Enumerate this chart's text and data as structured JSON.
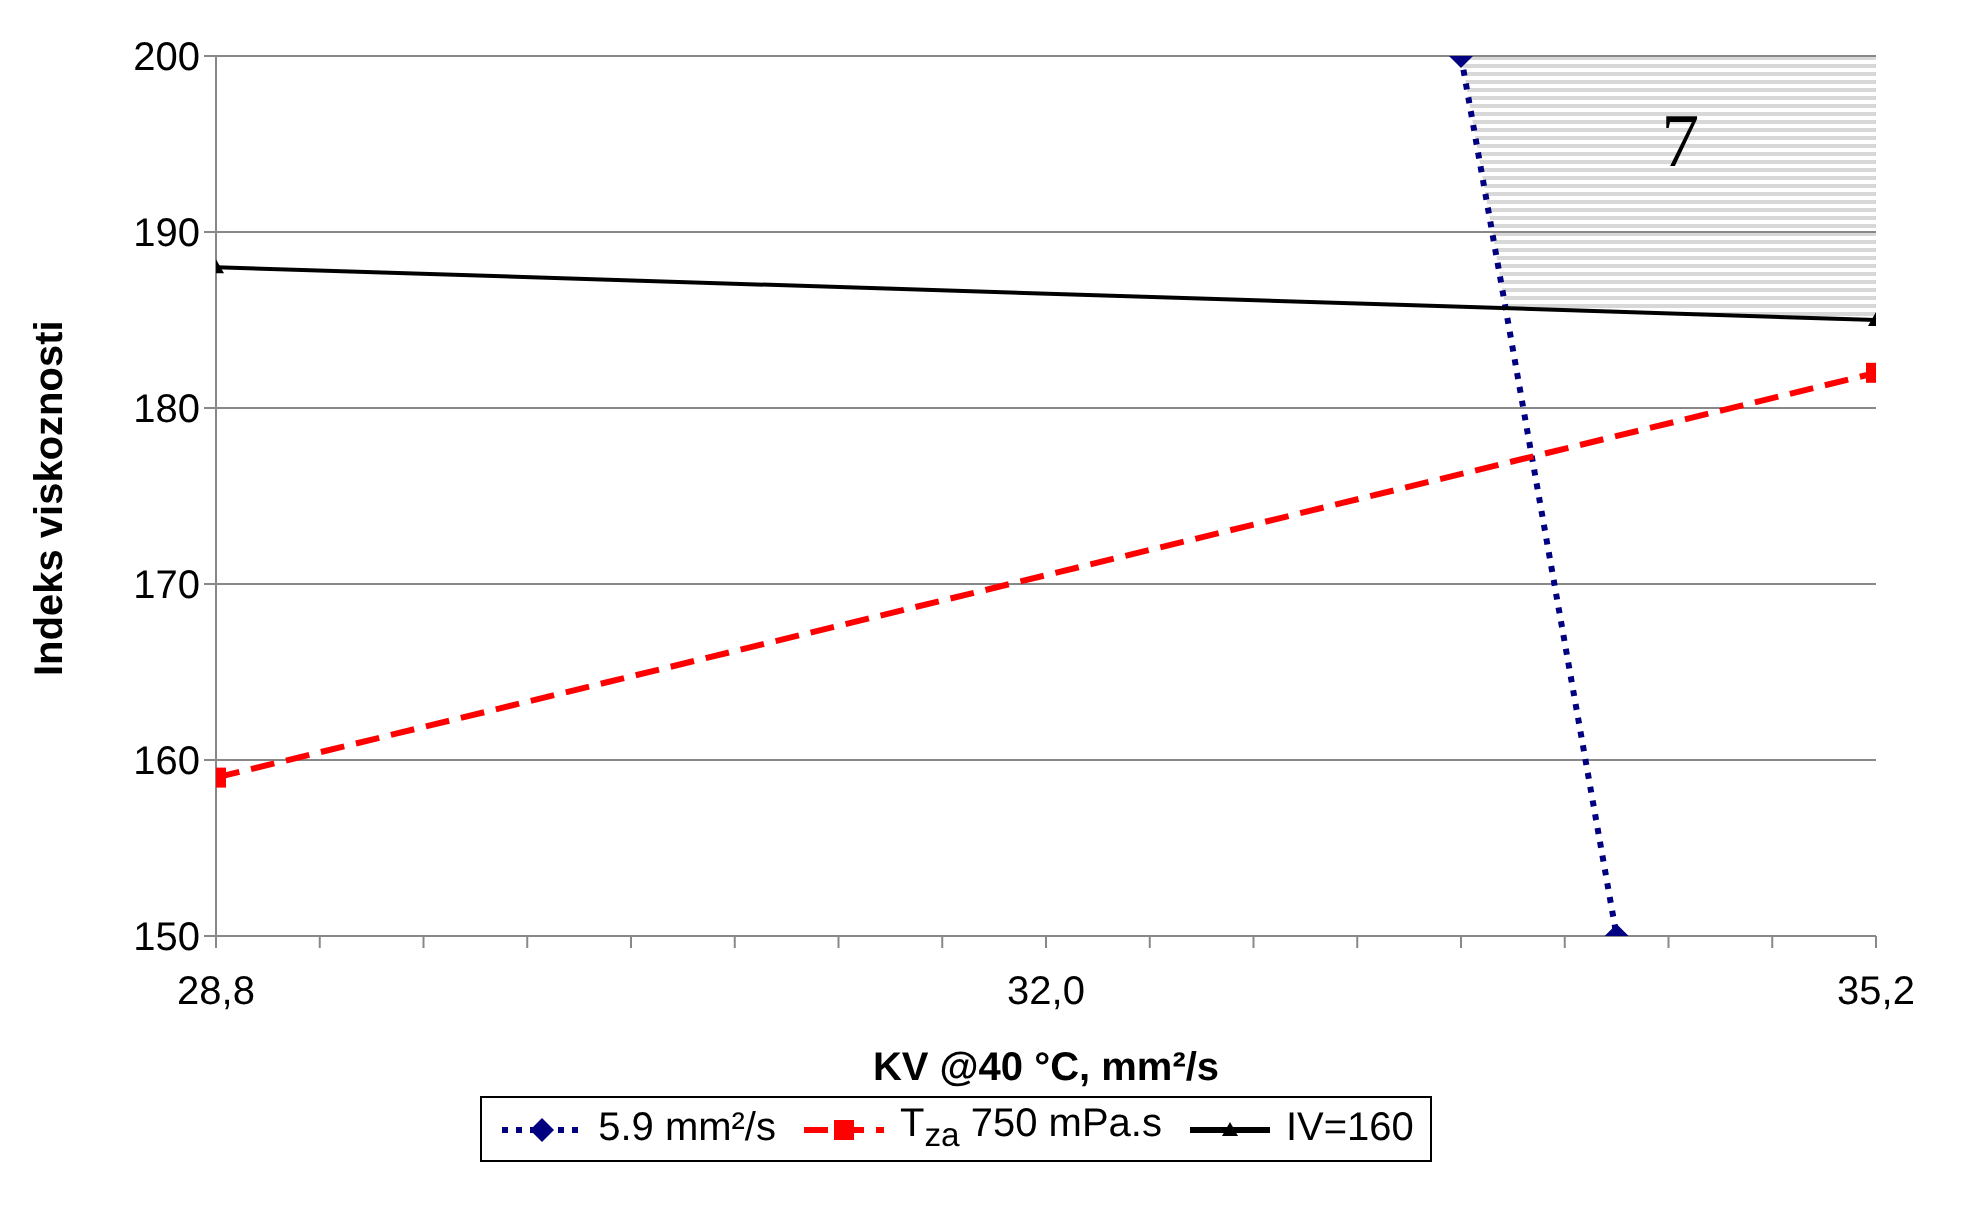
{
  "chart_data": {
    "type": "line",
    "xlabel": "KV @40 °C, mm²/s",
    "ylabel": "Indeks viskoznosti",
    "xlim": [
      28.8,
      35.2
    ],
    "xticks": [
      {
        "value": 28.8,
        "label": "28,8"
      },
      {
        "value": 29.2,
        "label": null
      },
      {
        "value": 29.6,
        "label": null
      },
      {
        "value": 30.0,
        "label": null
      },
      {
        "value": 30.4,
        "label": null
      },
      {
        "value": 30.8,
        "label": null
      },
      {
        "value": 31.2,
        "label": null
      },
      {
        "value": 31.6,
        "label": null
      },
      {
        "value": 32.0,
        "label": "32,0"
      },
      {
        "value": 32.4,
        "label": null
      },
      {
        "value": 32.8,
        "label": null
      },
      {
        "value": 33.2,
        "label": null
      },
      {
        "value": 33.6,
        "label": null
      },
      {
        "value": 34.0,
        "label": null
      },
      {
        "value": 34.4,
        "label": null
      },
      {
        "value": 34.8,
        "label": null
      },
      {
        "value": 35.2,
        "label": "35,2"
      }
    ],
    "ylim": [
      150,
      200
    ],
    "yticks": [
      150,
      160,
      170,
      180,
      190,
      200
    ],
    "grid": "y",
    "legend": "bottom",
    "annotations": [
      "7"
    ],
    "series": [
      {
        "name": "5.9 mm²/s",
        "color": "#000080",
        "x": [
          33.6,
          34.2
        ],
        "values": [
          200,
          150
        ],
        "marker": "diamond",
        "line_style": "dotted"
      },
      {
        "name": "T$_{za}$ 750 mPa.s",
        "color": "#ff0000",
        "x": [
          28.8,
          35.2
        ],
        "values": [
          159,
          182
        ],
        "marker": "square",
        "line_style": "dashed"
      },
      {
        "name": "IV=160",
        "color": "#000000",
        "x": [
          28.8,
          35.2
        ],
        "values": [
          188,
          185
        ],
        "marker": "triangle",
        "line_style": "solid"
      }
    ]
  }
}
